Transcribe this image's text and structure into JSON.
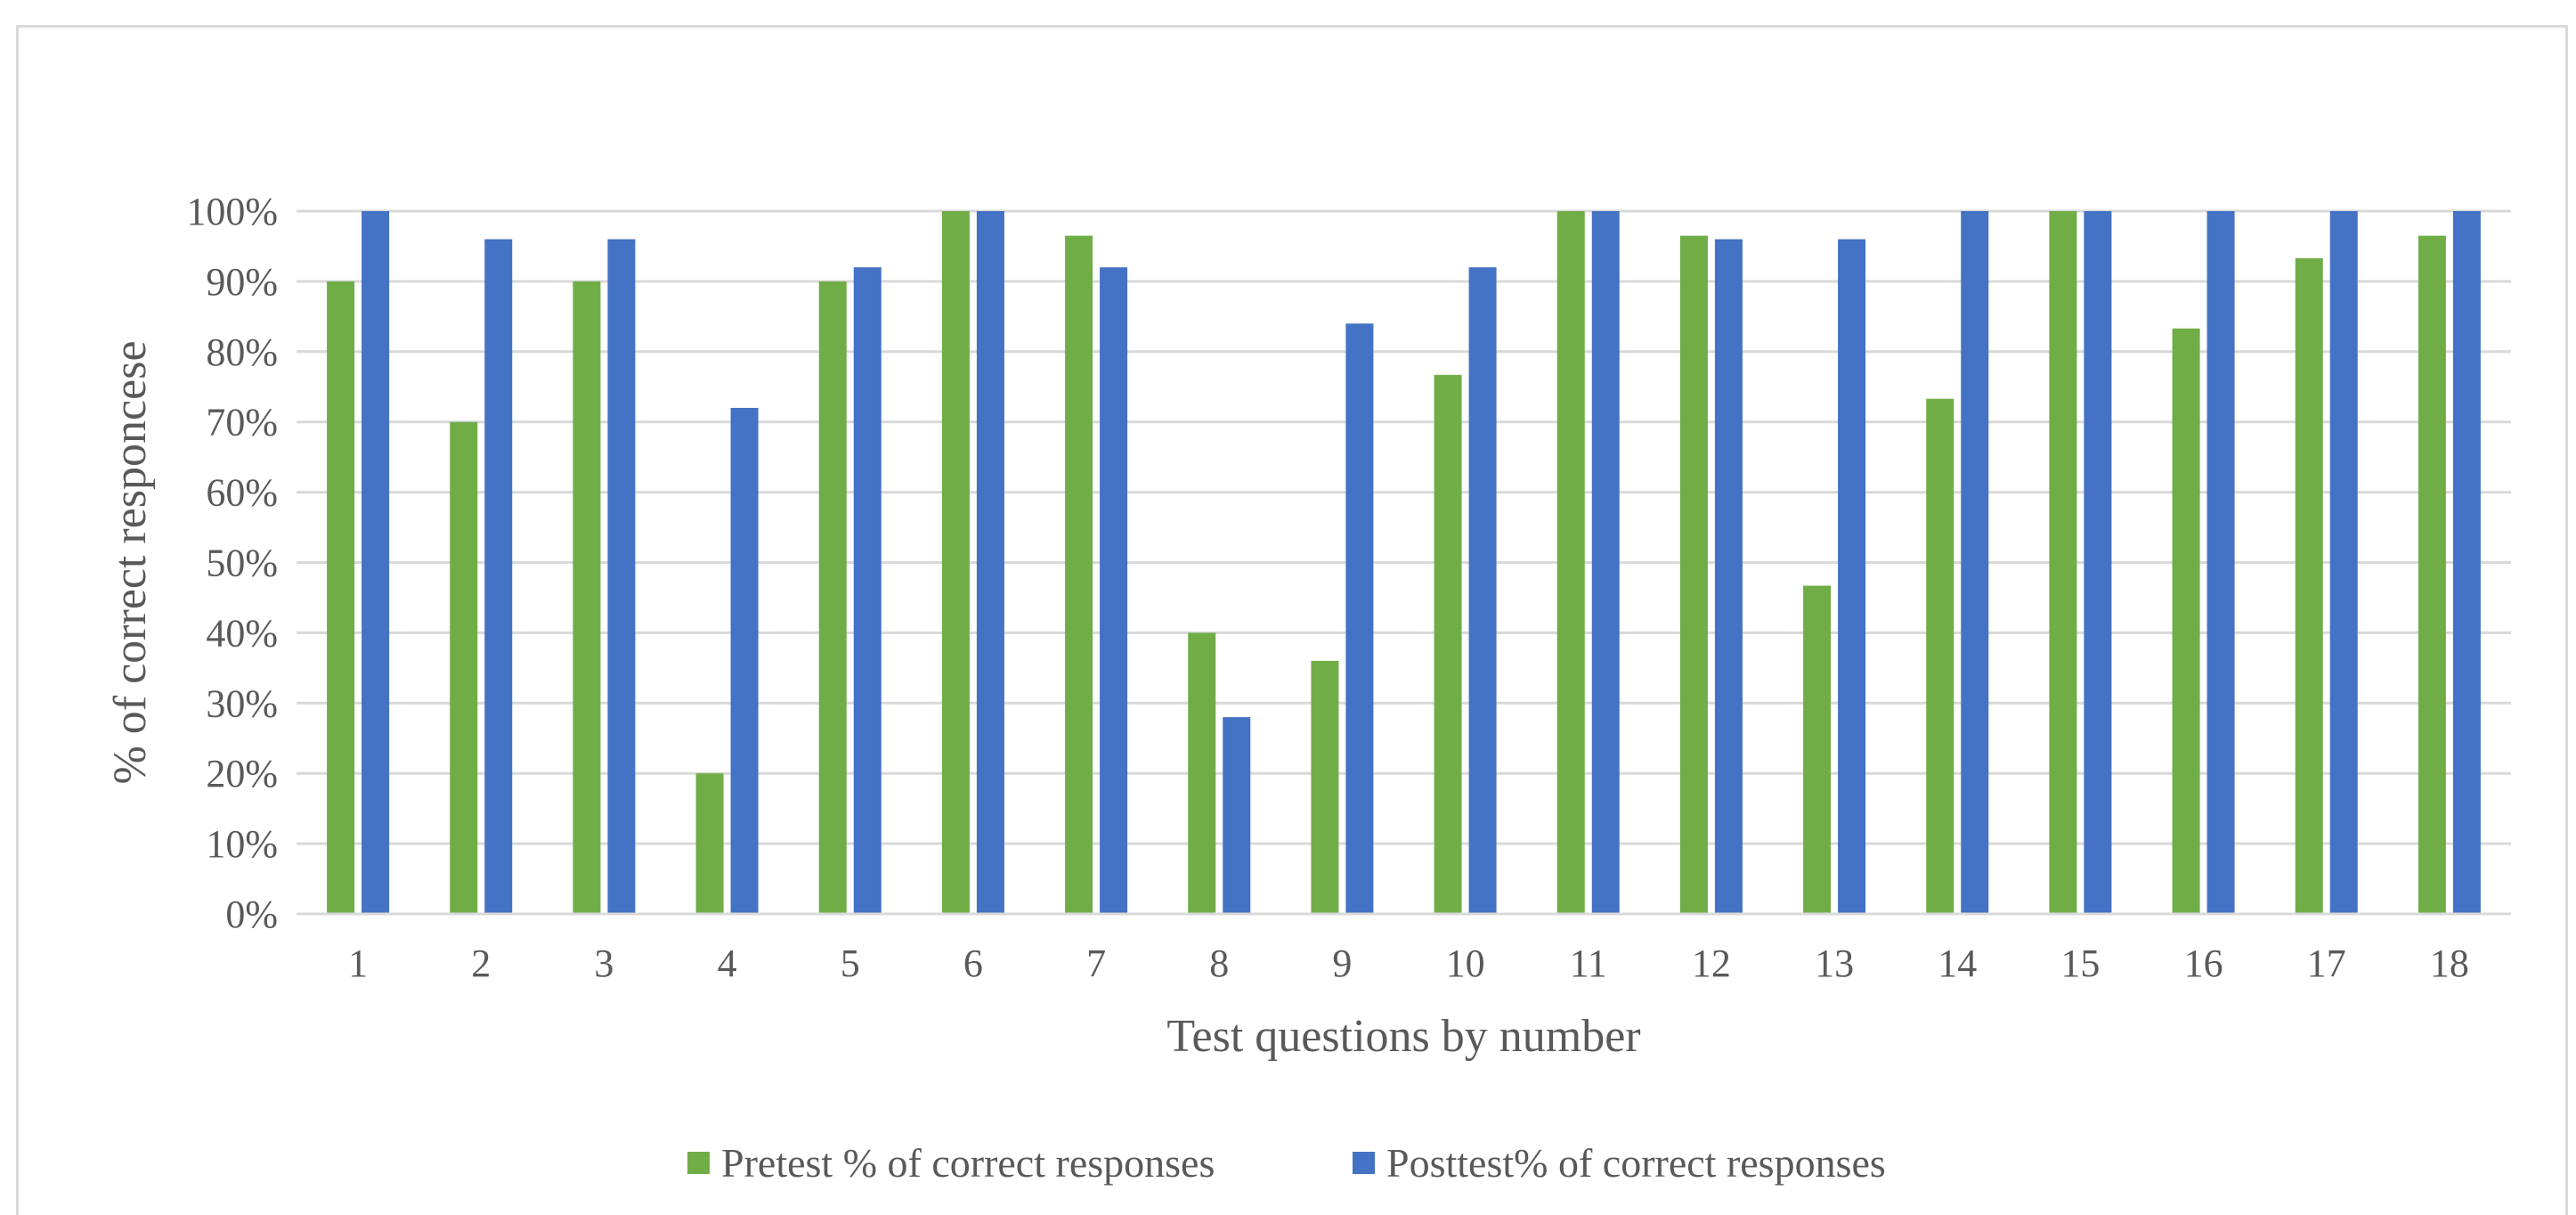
{
  "chart_data": {
    "type": "bar",
    "title": "",
    "xlabel": "Test questions by number",
    "ylabel": "% of correct responcese",
    "ylim": [
      0,
      100
    ],
    "y_ticks": [
      "0%",
      "10%",
      "20%",
      "30%",
      "40%",
      "50%",
      "60%",
      "70%",
      "80%",
      "90%",
      "100%"
    ],
    "categories": [
      "1",
      "2",
      "3",
      "4",
      "5",
      "6",
      "7",
      "8",
      "9",
      "10",
      "11",
      "12",
      "13",
      "14",
      "15",
      "16",
      "17",
      "18"
    ],
    "series": [
      {
        "name": "Pretest % of correct responses",
        "color": "#70ad47",
        "values": [
          90,
          70,
          90,
          20,
          90,
          100,
          96.5,
          40,
          36,
          76.7,
          100,
          96.5,
          46.7,
          73.3,
          100,
          83.3,
          93.3,
          96.5
        ]
      },
      {
        "name": "Posttest% of correct responses",
        "color": "#4472c4",
        "values": [
          100,
          96,
          96,
          72,
          92,
          100,
          92,
          28,
          84,
          92,
          100,
          96,
          96,
          100,
          100,
          100,
          100,
          100
        ]
      }
    ],
    "grid": true,
    "legend_position": "bottom"
  }
}
